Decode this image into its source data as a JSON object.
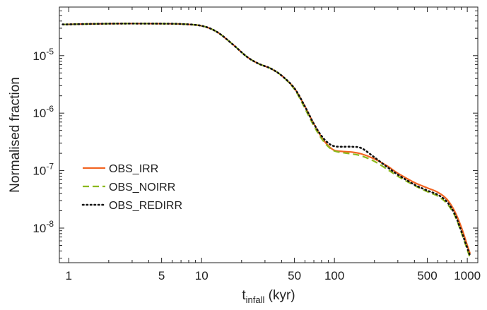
{
  "chart_data": {
    "type": "line",
    "xlabel_main": "t",
    "xlabel_sub": "infall",
    "xlabel_unit": " (kyr)",
    "ylabel": "Normalised fraction",
    "xscale": "log",
    "yscale": "log",
    "xlim": [
      0.85,
      1200
    ],
    "ylim": [
      2.5e-09,
      7e-05
    ],
    "grid": false,
    "legend_position": "left-middle",
    "x_ticks": [
      {
        "value": 1,
        "label": "1"
      },
      {
        "value": 5,
        "label": "5"
      },
      {
        "value": 10,
        "label": "10"
      },
      {
        "value": 50,
        "label": "50"
      },
      {
        "value": 100,
        "label": "100"
      },
      {
        "value": 500,
        "label": "500"
      },
      {
        "value": 1000,
        "label": "1000"
      }
    ],
    "y_ticks": [
      {
        "value": 1e-08,
        "base": "10",
        "exp": "-8"
      },
      {
        "value": 1e-07,
        "base": "10",
        "exp": "-7"
      },
      {
        "value": 1e-06,
        "base": "10",
        "exp": "-6"
      },
      {
        "value": 1e-05,
        "base": "10",
        "exp": "-5"
      }
    ],
    "series": [
      {
        "name": "OBS_IRR",
        "color": "#f26522",
        "dash": "solid",
        "points": [
          [
            0.9,
            3.5e-05
          ],
          [
            1,
            3.5e-05
          ],
          [
            2,
            3.6e-05
          ],
          [
            5,
            3.6e-05
          ],
          [
            7,
            3.55e-05
          ],
          [
            10,
            3.3e-05
          ],
          [
            13,
            2.6e-05
          ],
          [
            17,
            1.6e-05
          ],
          [
            22,
            9.5e-06
          ],
          [
            27,
            7.2e-06
          ],
          [
            33,
            6e-06
          ],
          [
            40,
            4.5e-06
          ],
          [
            50,
            2.7e-06
          ],
          [
            60,
            1.3e-06
          ],
          [
            70,
            6.5e-07
          ],
          [
            80,
            3.8e-07
          ],
          [
            90,
            2.7e-07
          ],
          [
            100,
            2.25e-07
          ],
          [
            115,
            2.15e-07
          ],
          [
            135,
            2.1e-07
          ],
          [
            160,
            1.95e-07
          ],
          [
            200,
            1.6e-07
          ],
          [
            250,
            1.2e-07
          ],
          [
            300,
            9e-08
          ],
          [
            400,
            6.2e-08
          ],
          [
            500,
            5e-08
          ],
          [
            600,
            4.2e-08
          ],
          [
            700,
            3.2e-08
          ],
          [
            800,
            2e-08
          ],
          [
            900,
            1.05e-08
          ],
          [
            1000,
            5e-09
          ],
          [
            1050,
            3.6e-09
          ]
        ]
      },
      {
        "name": "OBS_NOIRR",
        "color": "#8cb81c",
        "dash": "dashed",
        "points": [
          [
            0.9,
            3.5e-05
          ],
          [
            1,
            3.5e-05
          ],
          [
            2,
            3.6e-05
          ],
          [
            5,
            3.6e-05
          ],
          [
            7,
            3.55e-05
          ],
          [
            10,
            3.3e-05
          ],
          [
            13,
            2.6e-05
          ],
          [
            17,
            1.6e-05
          ],
          [
            22,
            9.5e-06
          ],
          [
            27,
            7.2e-06
          ],
          [
            33,
            6e-06
          ],
          [
            40,
            4.5e-06
          ],
          [
            50,
            2.6e-06
          ],
          [
            60,
            1.2e-06
          ],
          [
            70,
            6e-07
          ],
          [
            80,
            3.6e-07
          ],
          [
            90,
            2.6e-07
          ],
          [
            100,
            2.2e-07
          ],
          [
            115,
            2.05e-07
          ],
          [
            135,
            1.95e-07
          ],
          [
            160,
            1.8e-07
          ],
          [
            200,
            1.45e-07
          ],
          [
            250,
            1.05e-07
          ],
          [
            300,
            8e-08
          ],
          [
            400,
            5.5e-08
          ],
          [
            500,
            4.3e-08
          ],
          [
            600,
            3.6e-08
          ],
          [
            700,
            2.7e-08
          ],
          [
            800,
            1.7e-08
          ],
          [
            900,
            8.5e-09
          ],
          [
            1000,
            4.2e-09
          ],
          [
            1050,
            3e-09
          ]
        ]
      },
      {
        "name": "OBS_REDIRR",
        "color": "#111111",
        "dash": "dotted",
        "points": [
          [
            0.9,
            3.5e-05
          ],
          [
            1,
            3.5e-05
          ],
          [
            2,
            3.6e-05
          ],
          [
            5,
            3.6e-05
          ],
          [
            7,
            3.55e-05
          ],
          [
            10,
            3.3e-05
          ],
          [
            13,
            2.6e-05
          ],
          [
            17,
            1.6e-05
          ],
          [
            22,
            9.5e-06
          ],
          [
            27,
            7.2e-06
          ],
          [
            33,
            6e-06
          ],
          [
            40,
            4.5e-06
          ],
          [
            50,
            2.7e-06
          ],
          [
            60,
            1.3e-06
          ],
          [
            70,
            6.5e-07
          ],
          [
            80,
            4e-07
          ],
          [
            90,
            3e-07
          ],
          [
            100,
            2.65e-07
          ],
          [
            115,
            2.6e-07
          ],
          [
            135,
            2.6e-07
          ],
          [
            160,
            2.45e-07
          ],
          [
            200,
            1.7e-07
          ],
          [
            250,
            1.15e-07
          ],
          [
            300,
            8.5e-08
          ],
          [
            400,
            5.7e-08
          ],
          [
            500,
            4.5e-08
          ],
          [
            600,
            3.8e-08
          ],
          [
            700,
            2.9e-08
          ],
          [
            800,
            1.8e-08
          ],
          [
            900,
            9e-09
          ],
          [
            1000,
            4.5e-09
          ],
          [
            1050,
            3.3e-09
          ]
        ]
      }
    ]
  }
}
